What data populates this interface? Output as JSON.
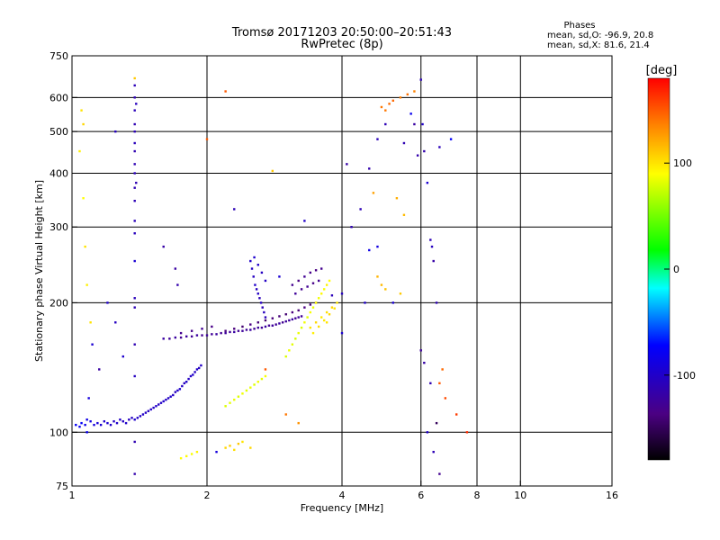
{
  "title_line1": "Tromsø 20171203 20:50:00–20:51:43",
  "title_line2": "RwPretec (8p)",
  "phases": {
    "heading": "Phases",
    "line_o": "mean, sd,O: -96.9, 20.8",
    "line_x": "mean, sd,X:  81.6, 21.4"
  },
  "chart_data": {
    "type": "scatter",
    "xlabel": "Frequency [MHz]",
    "ylabel": "Stationary phase Virtual Height [km]",
    "xscale": "log",
    "yscale": "log",
    "xlim": [
      1,
      16
    ],
    "ylim": [
      75,
      750
    ],
    "x_ticks": [
      1,
      2,
      4,
      6,
      8,
      10,
      16
    ],
    "y_ticks": [
      75,
      100,
      200,
      300,
      400,
      500,
      600,
      750
    ],
    "x_grid": [
      2,
      4,
      6,
      8,
      10
    ],
    "y_grid": [
      100,
      200,
      300,
      400,
      500,
      600
    ],
    "colorbar": {
      "label": "[deg]",
      "ticks": [
        100,
        0,
        -100
      ],
      "range": [
        -180,
        180
      ]
    },
    "points": [
      [
        1.02,
        104,
        -78
      ],
      [
        1.04,
        103,
        -80
      ],
      [
        1.05,
        105,
        -75
      ],
      [
        1.07,
        104,
        -82
      ],
      [
        1.08,
        107,
        -85
      ],
      [
        1.1,
        106,
        -88
      ],
      [
        1.12,
        104,
        -90
      ],
      [
        1.14,
        105,
        -92
      ],
      [
        1.16,
        104,
        -95
      ],
      [
        1.18,
        106,
        -98
      ],
      [
        1.2,
        105,
        -96
      ],
      [
        1.22,
        104,
        -100
      ],
      [
        1.24,
        106,
        -102
      ],
      [
        1.26,
        105,
        -99
      ],
      [
        1.28,
        107,
        -101
      ],
      [
        1.3,
        106,
        -103
      ],
      [
        1.32,
        105,
        -100
      ],
      [
        1.34,
        107,
        -104
      ],
      [
        1.36,
        108,
        -102
      ],
      [
        1.38,
        107,
        -99
      ],
      [
        1.4,
        108,
        -101
      ],
      [
        1.42,
        109,
        -103
      ],
      [
        1.44,
        110,
        -100
      ],
      [
        1.46,
        111,
        -102
      ],
      [
        1.48,
        112,
        -105
      ],
      [
        1.5,
        113,
        -101
      ],
      [
        1.52,
        114,
        -103
      ],
      [
        1.54,
        115,
        -100
      ],
      [
        1.56,
        116,
        -104
      ],
      [
        1.58,
        117,
        -102
      ],
      [
        1.6,
        118,
        -99
      ],
      [
        1.62,
        119,
        -101
      ],
      [
        1.64,
        120,
        -103
      ],
      [
        1.66,
        121,
        -100
      ],
      [
        1.68,
        122,
        -102
      ],
      [
        1.7,
        124,
        -104
      ],
      [
        1.72,
        125,
        -101
      ],
      [
        1.74,
        126,
        -99
      ],
      [
        1.76,
        128,
        -102
      ],
      [
        1.78,
        130,
        -104
      ],
      [
        1.8,
        131,
        -100
      ],
      [
        1.82,
        133,
        -103
      ],
      [
        1.84,
        135,
        -101
      ],
      [
        1.86,
        136,
        -99
      ],
      [
        1.88,
        138,
        -102
      ],
      [
        1.9,
        140,
        -100
      ],
      [
        1.92,
        141,
        -104
      ],
      [
        1.94,
        143,
        -101
      ],
      [
        1.38,
        310,
        -108
      ],
      [
        1.38,
        345,
        -110
      ],
      [
        1.38,
        370,
        -112
      ],
      [
        1.38,
        400,
        -109
      ],
      [
        1.38,
        420,
        -111
      ],
      [
        1.38,
        450,
        -113
      ],
      [
        1.38,
        470,
        -107
      ],
      [
        1.38,
        500,
        -110
      ],
      [
        1.38,
        520,
        -112
      ],
      [
        1.38,
        560,
        -108
      ],
      [
        1.38,
        600,
        -111
      ],
      [
        1.38,
        640,
        -109
      ],
      [
        1.38,
        290,
        -106
      ],
      [
        1.38,
        205,
        -108
      ],
      [
        1.38,
        195,
        -110
      ],
      [
        1.38,
        160,
        -112
      ],
      [
        1.38,
        135,
        -104
      ],
      [
        1.38,
        95,
        -112
      ],
      [
        1.38,
        80,
        -115
      ],
      [
        1.38,
        665,
        110
      ],
      [
        1.39,
        580,
        -106
      ],
      [
        1.39,
        380,
        -112
      ],
      [
        1.38,
        250,
        -95
      ],
      [
        1.6,
        165,
        -120
      ],
      [
        1.65,
        165,
        -125
      ],
      [
        1.7,
        166,
        -122
      ],
      [
        1.75,
        166,
        -128
      ],
      [
        1.8,
        167,
        -124
      ],
      [
        1.85,
        167,
        -126
      ],
      [
        1.9,
        168,
        -122
      ],
      [
        1.95,
        168,
        -128
      ],
      [
        2.0,
        168,
        -124
      ],
      [
        2.05,
        169,
        -126
      ],
      [
        2.1,
        169,
        -122
      ],
      [
        2.15,
        170,
        -128
      ],
      [
        2.2,
        170,
        -124
      ],
      [
        2.25,
        171,
        -126
      ],
      [
        2.3,
        171,
        -120
      ],
      [
        2.35,
        172,
        -128
      ],
      [
        2.4,
        172,
        -124
      ],
      [
        2.45,
        173,
        -126
      ],
      [
        2.5,
        173,
        -120
      ],
      [
        2.55,
        174,
        -128
      ],
      [
        2.6,
        175,
        -124
      ],
      [
        2.65,
        175,
        -126
      ],
      [
        2.7,
        176,
        -120
      ],
      [
        2.75,
        177,
        -128
      ],
      [
        2.8,
        177,
        -124
      ],
      [
        2.85,
        178,
        -126
      ],
      [
        2.9,
        179,
        -122
      ],
      [
        2.95,
        180,
        -128
      ],
      [
        3.0,
        181,
        -124
      ],
      [
        3.05,
        182,
        -126
      ],
      [
        3.1,
        183,
        -120
      ],
      [
        3.15,
        184,
        -128
      ],
      [
        3.2,
        185,
        -124
      ],
      [
        3.25,
        186,
        -126
      ],
      [
        2.2,
        172,
        -140
      ],
      [
        2.3,
        174,
        -138
      ],
      [
        2.4,
        176,
        -142
      ],
      [
        2.5,
        178,
        -136
      ],
      [
        2.6,
        180,
        -140
      ],
      [
        2.7,
        182,
        -144
      ],
      [
        2.8,
        184,
        -138
      ],
      [
        2.9,
        186,
        -140
      ],
      [
        3.0,
        188,
        -142
      ],
      [
        3.1,
        190,
        -138
      ],
      [
        3.2,
        192,
        -140
      ],
      [
        3.3,
        195,
        -136
      ],
      [
        3.4,
        198,
        -140
      ],
      [
        3.5,
        200,
        -138
      ],
      [
        1.75,
        170,
        -130
      ],
      [
        1.85,
        172,
        -132
      ],
      [
        1.95,
        174,
        -128
      ],
      [
        2.05,
        176,
        -134
      ],
      [
        2.5,
        250,
        -100
      ],
      [
        2.52,
        240,
        -102
      ],
      [
        2.54,
        230,
        -104
      ],
      [
        2.56,
        220,
        -100
      ],
      [
        2.58,
        215,
        -106
      ],
      [
        2.6,
        210,
        -102
      ],
      [
        2.62,
        205,
        -108
      ],
      [
        2.64,
        200,
        -104
      ],
      [
        2.66,
        195,
        -110
      ],
      [
        2.68,
        190,
        -106
      ],
      [
        2.7,
        185,
        -108
      ],
      [
        2.55,
        255,
        -98
      ],
      [
        2.6,
        245,
        -100
      ],
      [
        2.65,
        235,
        -104
      ],
      [
        2.7,
        225,
        -102
      ],
      [
        3.1,
        220,
        -130
      ],
      [
        3.2,
        225,
        -135
      ],
      [
        3.3,
        230,
        -128
      ],
      [
        3.4,
        235,
        -132
      ],
      [
        3.5,
        238,
        -136
      ],
      [
        3.6,
        240,
        -130
      ],
      [
        3.15,
        210,
        -125
      ],
      [
        3.25,
        215,
        -130
      ],
      [
        3.35,
        218,
        -128
      ],
      [
        3.45,
        222,
        -134
      ],
      [
        3.55,
        225,
        -128
      ],
      [
        3.0,
        150,
        80
      ],
      [
        3.05,
        155,
        85
      ],
      [
        3.1,
        160,
        82
      ],
      [
        3.15,
        165,
        78
      ],
      [
        3.2,
        170,
        84
      ],
      [
        3.25,
        175,
        80
      ],
      [
        3.3,
        180,
        86
      ],
      [
        3.35,
        185,
        82
      ],
      [
        3.4,
        190,
        88
      ],
      [
        3.45,
        195,
        84
      ],
      [
        3.5,
        200,
        90
      ],
      [
        3.55,
        205,
        86
      ],
      [
        3.6,
        210,
        92
      ],
      [
        3.65,
        215,
        88
      ],
      [
        3.7,
        220,
        94
      ],
      [
        3.75,
        225,
        90
      ],
      [
        3.4,
        175,
        100
      ],
      [
        3.5,
        180,
        104
      ],
      [
        3.6,
        185,
        98
      ],
      [
        3.7,
        190,
        102
      ],
      [
        3.8,
        195,
        106
      ],
      [
        3.9,
        200,
        100
      ],
      [
        3.45,
        170,
        96
      ],
      [
        3.55,
        176,
        102
      ],
      [
        3.65,
        182,
        98
      ],
      [
        3.75,
        188,
        104
      ],
      [
        3.85,
        194,
        100
      ],
      [
        2.2,
        115,
        80
      ],
      [
        2.25,
        117,
        82
      ],
      [
        2.3,
        119,
        84
      ],
      [
        2.35,
        121,
        80
      ],
      [
        2.4,
        123,
        86
      ],
      [
        2.45,
        125,
        82
      ],
      [
        2.5,
        127,
        84
      ],
      [
        2.55,
        129,
        80
      ],
      [
        2.6,
        131,
        86
      ],
      [
        2.65,
        133,
        82
      ],
      [
        2.7,
        135,
        88
      ],
      [
        1.75,
        87,
        90
      ],
      [
        1.8,
        88,
        92
      ],
      [
        1.85,
        89,
        88
      ],
      [
        1.9,
        90,
        94
      ],
      [
        2.2,
        92,
        105
      ],
      [
        2.25,
        93,
        108
      ],
      [
        2.3,
        91,
        102
      ],
      [
        2.35,
        94,
        110
      ],
      [
        6.0,
        660,
        -110
      ],
      [
        6.05,
        520,
        -100
      ],
      [
        6.1,
        450,
        -115
      ],
      [
        6.2,
        380,
        -95
      ],
      [
        6.3,
        280,
        -110
      ],
      [
        6.35,
        270,
        -105
      ],
      [
        6.4,
        250,
        -118
      ],
      [
        6.5,
        200,
        -112
      ],
      [
        6.6,
        460,
        -108
      ],
      [
        5.8,
        520,
        -120
      ],
      [
        5.9,
        440,
        -115
      ],
      [
        5.5,
        470,
        -112
      ],
      [
        5.0,
        520,
        -110
      ],
      [
        4.8,
        480,
        -108
      ],
      [
        4.6,
        410,
        -115
      ],
      [
        4.4,
        330,
        -110
      ],
      [
        4.2,
        300,
        -112
      ],
      [
        4.1,
        420,
        -118
      ],
      [
        4.5,
        200,
        -100
      ],
      [
        5.2,
        200,
        -95
      ],
      [
        4.0,
        210,
        -104
      ],
      [
        3.8,
        208,
        -108
      ],
      [
        5.0,
        560,
        140
      ],
      [
        5.2,
        590,
        145
      ],
      [
        5.4,
        600,
        138
      ],
      [
        5.6,
        610,
        142
      ],
      [
        5.8,
        620,
        136
      ],
      [
        4.9,
        570,
        140
      ],
      [
        5.1,
        580,
        144
      ],
      [
        5.3,
        350,
        120
      ],
      [
        5.5,
        320,
        115
      ],
      [
        4.7,
        360,
        125
      ],
      [
        4.8,
        230,
        118
      ],
      [
        4.9,
        220,
        116
      ],
      [
        5.4,
        210,
        110
      ],
      [
        5.0,
        215,
        112
      ],
      [
        4.8,
        270,
        -88
      ],
      [
        4.6,
        265,
        -85
      ],
      [
        5.7,
        550,
        -80
      ],
      [
        7.0,
        480,
        -75
      ],
      [
        6.6,
        130,
        150
      ],
      [
        6.8,
        120,
        155
      ],
      [
        7.2,
        110,
        160
      ],
      [
        7.6,
        100,
        165
      ],
      [
        6.7,
        140,
        145
      ],
      [
        6.5,
        105,
        -150
      ],
      [
        6.4,
        90,
        -110
      ],
      [
        6.6,
        80,
        -130
      ],
      [
        6.2,
        100,
        -100
      ],
      [
        6.0,
        155,
        -125
      ],
      [
        6.1,
        145,
        -118
      ],
      [
        6.3,
        130,
        -112
      ],
      [
        1.05,
        560,
        100
      ],
      [
        1.06,
        520,
        105
      ],
      [
        1.04,
        450,
        95
      ],
      [
        1.06,
        350,
        90
      ],
      [
        1.07,
        270,
        100
      ],
      [
        1.08,
        220,
        95
      ],
      [
        1.1,
        180,
        100
      ],
      [
        1.11,
        160,
        -95
      ],
      [
        1.2,
        200,
        -100
      ],
      [
        1.25,
        180,
        -104
      ],
      [
        1.3,
        150,
        -98
      ],
      [
        1.15,
        140,
        -120
      ],
      [
        1.25,
        500,
        -105
      ],
      [
        1.7,
        240,
        -120
      ],
      [
        1.72,
        220,
        -115
      ],
      [
        1.6,
        270,
        -118
      ],
      [
        2.0,
        480,
        150
      ],
      [
        2.2,
        620,
        150
      ],
      [
        2.3,
        330,
        -110
      ],
      [
        2.8,
        405,
        110
      ],
      [
        3.3,
        310,
        -100
      ],
      [
        2.9,
        230,
        -95
      ],
      [
        3.7,
        180,
        100
      ],
      [
        4.0,
        170,
        -96
      ],
      [
        2.4,
        95,
        100
      ],
      [
        2.5,
        92,
        104
      ],
      [
        2.1,
        90,
        -90
      ],
      [
        3.0,
        110,
        140
      ],
      [
        3.2,
        105,
        130
      ],
      [
        2.7,
        140,
        150
      ],
      [
        1.08,
        100,
        -80
      ],
      [
        1.09,
        120,
        -90
      ]
    ]
  }
}
